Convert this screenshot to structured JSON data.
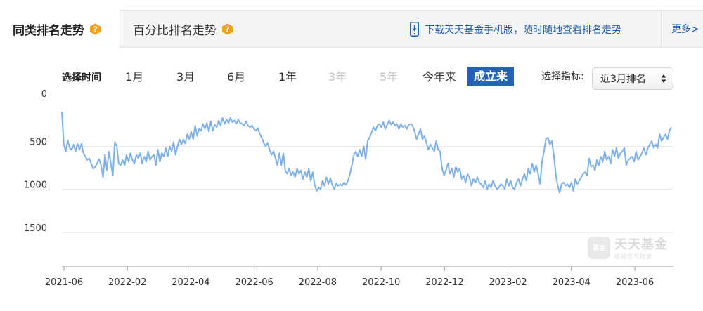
{
  "tabs": {
    "active_label": "同类排名走势",
    "inactive_label": "百分比排名走势"
  },
  "app_promo": {
    "label": "下载天天基金手机版，随时随地查看排名走势"
  },
  "more_link": {
    "label": "更多>"
  },
  "time_range": {
    "label": "选择时间",
    "options": [
      {
        "label": "1月",
        "state": "normal"
      },
      {
        "label": "3月",
        "state": "normal"
      },
      {
        "label": "6月",
        "state": "normal"
      },
      {
        "label": "1年",
        "state": "normal"
      },
      {
        "label": "3年",
        "state": "disabled"
      },
      {
        "label": "5年",
        "state": "disabled"
      },
      {
        "label": "今年来",
        "state": "normal"
      },
      {
        "label": "成立来",
        "state": "selected"
      }
    ]
  },
  "indicator": {
    "label": "选择指标:",
    "selected": "近3月排名"
  },
  "watermark": {
    "brand": "天天基金",
    "tagline": "链接您与财富",
    "logo_text": "基金"
  },
  "colors": {
    "line": "#7fb1e8",
    "accent": "#2463b3",
    "link": "#1d5aa7",
    "help_icon": "#f0a11a"
  },
  "chart_data": {
    "type": "line",
    "y_reversed": true,
    "ylim": [
      0,
      1900
    ],
    "y_ticks": [
      "0",
      "500",
      "1000",
      "1500"
    ],
    "x_ticks": [
      "2021-06",
      "2022-02",
      "2022-04",
      "2022-06",
      "2022-08",
      "2022-10",
      "2022-12",
      "2023-02",
      "2023-04",
      "2023-06"
    ],
    "grid": "horizontal",
    "series": [
      {
        "values": [
          100,
          480,
          560,
          430,
          520,
          540,
          480,
          560,
          470,
          540,
          470,
          580,
          620,
          660,
          640,
          700,
          760,
          740,
          700,
          650,
          720,
          860,
          600,
          780,
          560,
          700,
          840,
          450,
          500,
          700,
          720,
          660,
          720,
          600,
          680,
          580,
          660,
          700,
          600,
          640,
          580,
          700,
          620,
          680,
          560,
          660,
          620,
          600,
          720,
          540,
          680,
          580,
          620,
          520,
          620,
          500,
          560,
          450,
          600,
          500,
          420,
          480,
          420,
          470,
          360,
          420,
          330,
          420,
          260,
          380,
          300,
          320,
          240,
          300,
          230,
          330,
          210,
          320,
          250,
          280,
          200,
          260,
          170,
          240,
          190,
          230,
          170,
          220,
          200,
          240,
          190,
          230,
          240,
          260,
          210,
          260,
          280,
          260,
          300,
          320,
          290,
          360,
          400,
          460,
          500,
          460,
          540,
          600,
          560,
          640,
          720,
          580,
          720,
          580,
          780,
          820,
          760,
          840,
          800,
          860,
          760,
          820,
          780,
          880,
          800,
          860,
          760,
          900,
          800,
          950,
          1020,
          980,
          1000,
          900,
          960,
          860,
          940,
          870,
          950,
          1000,
          930,
          960,
          940,
          960,
          920,
          950,
          900,
          820,
          720,
          600,
          560,
          620,
          540,
          620,
          500,
          650,
          440,
          400,
          340,
          280,
          320,
          260,
          240,
          280,
          220,
          300,
          250,
          200,
          250,
          220,
          260,
          240,
          300,
          240,
          280,
          260,
          300,
          250,
          240,
          260,
          330,
          420,
          360,
          300,
          420,
          380,
          460,
          540,
          480,
          520,
          560,
          440,
          540,
          560,
          760,
          840,
          780,
          700,
          820,
          760,
          860,
          740,
          800,
          760,
          880,
          840,
          920,
          820,
          860,
          960,
          880,
          920,
          860,
          920,
          940,
          980,
          900,
          1000,
          940,
          980,
          900,
          960,
          1000,
          980,
          940,
          960,
          1000,
          880,
          960,
          900,
          980,
          1000,
          920,
          880,
          960,
          880,
          820,
          900,
          760,
          820,
          700,
          800,
          720,
          820,
          940,
          680,
          560,
          420,
          400,
          480,
          440,
          600,
          820,
          960,
          1040,
          940,
          920,
          960,
          940,
          980,
          920,
          1020,
          880,
          940,
          900,
          860,
          820,
          800,
          840,
          640,
          740,
          720,
          780,
          660,
          720,
          620,
          680,
          560,
          660,
          620,
          700,
          540,
          620,
          520,
          640,
          580,
          560,
          520,
          720,
          660,
          640,
          620,
          680,
          560,
          660,
          620,
          580,
          520,
          600,
          520,
          480,
          440,
          520,
          480,
          520,
          360,
          440,
          400,
          360,
          420,
          320,
          280
        ],
        "color": "#7fb1e8"
      }
    ]
  }
}
